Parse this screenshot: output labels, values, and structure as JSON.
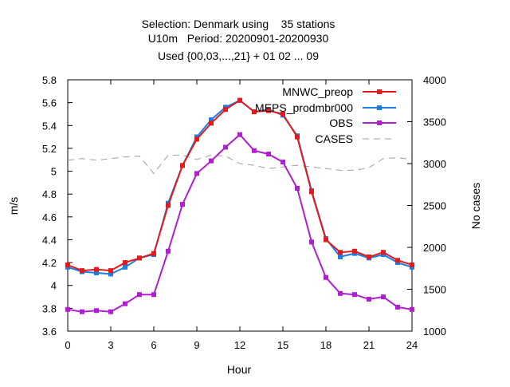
{
  "chart_data": {
    "type": "line",
    "title_lines": [
      "Selection: Denmark using    35 stations",
      "U10m   Period: 20200901-20200930",
      "Used {00,03,...,21} + 01 02 ... 09"
    ],
    "xlabel": "Hour",
    "ylabel": "m/s",
    "y2label": "No cases",
    "xlim": [
      0,
      24
    ],
    "ylim": [
      3.6,
      5.8
    ],
    "y2lim": [
      1000,
      4000
    ],
    "xticks": [
      0,
      3,
      6,
      9,
      12,
      15,
      18,
      21,
      24
    ],
    "yticks": [
      "3.6",
      "3.8",
      "4",
      "4.2",
      "4.4",
      "4.6",
      "4.8",
      "5",
      "5.2",
      "5.4",
      "5.6",
      "5.8"
    ],
    "y2ticks": [
      "1000",
      "1500",
      "2000",
      "2500",
      "3000",
      "3500",
      "4000"
    ],
    "grid": false,
    "legend_position": "top-right",
    "x": [
      0,
      1,
      2,
      3,
      4,
      5,
      6,
      7,
      8,
      9,
      10,
      11,
      12,
      13,
      14,
      15,
      16,
      17,
      18,
      19,
      20,
      21,
      22,
      23,
      24
    ],
    "series": [
      {
        "name": "MNWC_preop",
        "axis": "left",
        "color": "#e41a1c",
        "style": "solid-marker",
        "values": [
          4.18,
          4.13,
          4.14,
          4.13,
          4.2,
          4.24,
          4.28,
          4.7,
          5.05,
          5.28,
          5.42,
          5.54,
          5.62,
          5.52,
          5.53,
          5.5,
          5.3,
          4.82,
          4.4,
          4.29,
          4.3,
          4.25,
          4.29,
          4.22,
          4.18
        ]
      },
      {
        "name": "MEPS_prodmbr000",
        "axis": "left",
        "color": "#1a7fe0",
        "style": "solid-marker",
        "values": [
          4.16,
          4.12,
          4.11,
          4.1,
          4.16,
          4.24,
          4.27,
          4.72,
          5.05,
          5.3,
          5.45,
          5.56,
          5.62,
          5.52,
          5.54,
          5.49,
          5.31,
          4.83,
          4.41,
          4.25,
          4.28,
          4.24,
          4.27,
          4.2,
          4.16
        ]
      },
      {
        "name": "OBS",
        "axis": "left",
        "color": "#b01ed0",
        "style": "solid-marker",
        "values": [
          3.79,
          3.77,
          3.78,
          3.77,
          3.84,
          3.92,
          3.92,
          4.3,
          4.71,
          4.98,
          5.09,
          5.21,
          5.32,
          5.18,
          5.15,
          5.08,
          4.85,
          4.38,
          4.07,
          3.93,
          3.92,
          3.88,
          3.9,
          3.81,
          3.79
        ]
      },
      {
        "name": "CASES",
        "axis": "right",
        "color": "#a0a0a0",
        "style": "dashed",
        "values": [
          3040,
          3060,
          3040,
          3060,
          3080,
          3090,
          2880,
          3100,
          3100,
          3050,
          3100,
          3090,
          3000,
          2980,
          2940,
          2960,
          2980,
          2960,
          2940,
          2920,
          2920,
          2950,
          3060,
          3070,
          3050
        ]
      }
    ]
  }
}
